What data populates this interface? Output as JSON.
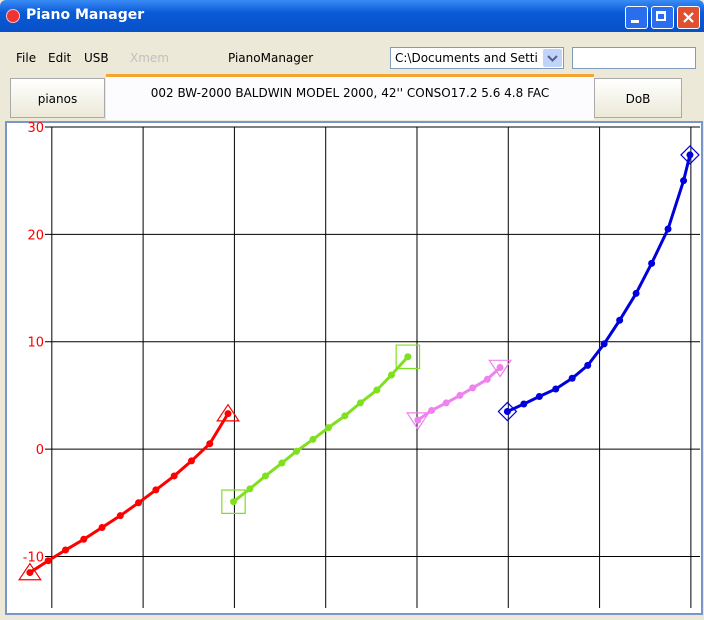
{
  "window": {
    "title": "Piano Manager",
    "menu": [
      "File",
      "Edit",
      "USB",
      "Xmem",
      "PianoManager"
    ],
    "path_box": "C:\\Documents and Setti",
    "left_button": "pianos",
    "info": "002 BW-2000  BALDWIN MODEL 2000, 42'' CONSO17.2  5.6  4.8 FAC",
    "right_button": "DoB"
  },
  "chart_data": {
    "type": "line",
    "grid": true,
    "xlim": [
      -0.48,
      7.1
    ],
    "xticks": [
      0,
      1,
      2,
      3,
      4,
      5,
      6,
      7
    ],
    "ylim": [
      -14.8,
      30
    ],
    "yticks": [
      -10,
      0,
      10,
      20,
      30
    ],
    "series": [
      {
        "color": "#ff0000",
        "marker": "triangle-up",
        "x": [
          -0.24,
          -0.04,
          0.15,
          0.35,
          0.55,
          0.75,
          0.95,
          1.14,
          1.34,
          1.53,
          1.73,
          1.93
        ],
        "values": [
          -11.5,
          -10.4,
          -9.4,
          -8.4,
          -7.3,
          -6.2,
          -5.0,
          -3.8,
          -2.5,
          -1.1,
          0.5,
          3.3
        ]
      },
      {
        "color": "#80e020",
        "marker": "square",
        "x": [
          1.99,
          2.17,
          2.34,
          2.52,
          2.68,
          2.86,
          3.03,
          3.21,
          3.38,
          3.56,
          3.72,
          3.9
        ],
        "values": [
          -4.9,
          -3.7,
          -2.5,
          -1.3,
          -0.2,
          0.9,
          2.0,
          3.1,
          4.3,
          5.5,
          6.9,
          8.6
        ]
      },
      {
        "color": "#ee82ee",
        "marker": "triangle-down",
        "x": [
          4.01,
          4.16,
          4.32,
          4.47,
          4.61,
          4.77,
          4.91
        ],
        "values": [
          2.7,
          3.6,
          4.3,
          5.0,
          5.7,
          6.5,
          7.6
        ]
      },
      {
        "color": "#0000dd",
        "marker": "diamond",
        "x": [
          4.99,
          5.17,
          5.34,
          5.52,
          5.7,
          5.87,
          6.05,
          6.22,
          6.4,
          6.57,
          6.75,
          6.92,
          6.99
        ],
        "values": [
          3.5,
          4.2,
          4.9,
          5.6,
          6.6,
          7.8,
          9.8,
          12.0,
          14.5,
          17.3,
          20.5,
          25.0,
          27.4
        ]
      }
    ]
  }
}
